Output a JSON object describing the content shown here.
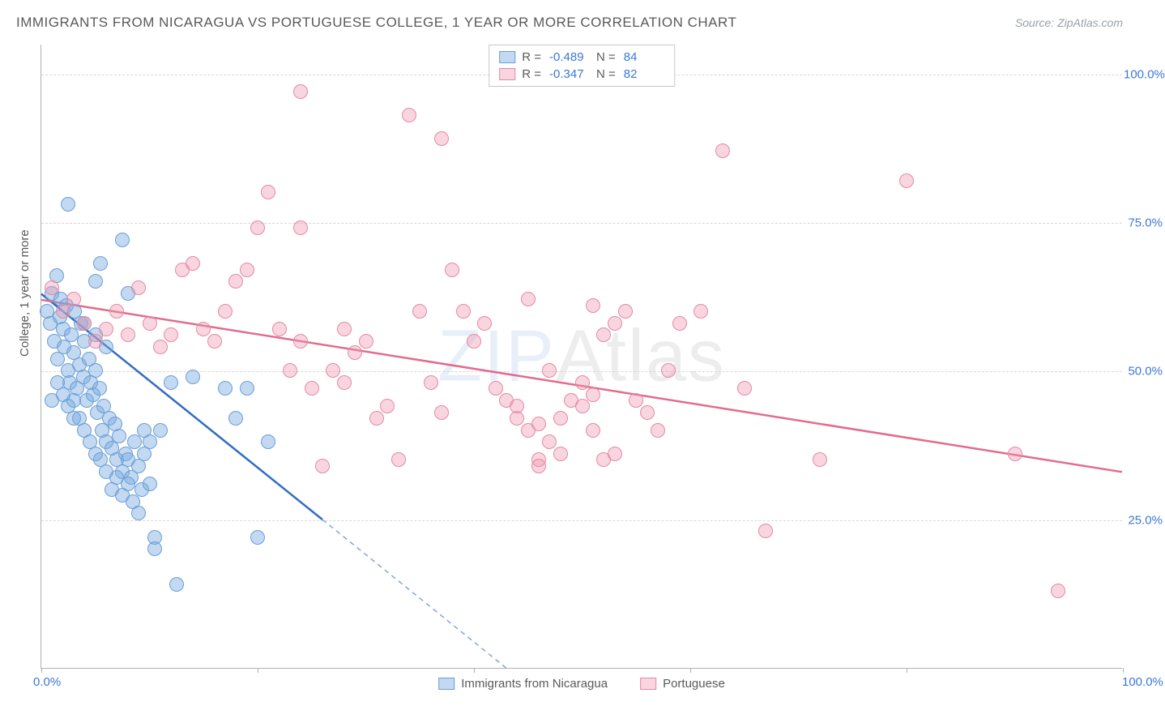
{
  "header": {
    "title": "IMMIGRANTS FROM NICARAGUA VS PORTUGUESE COLLEGE, 1 YEAR OR MORE CORRELATION CHART",
    "source": "Source: ZipAtlas.com"
  },
  "chart": {
    "type": "scatter",
    "watermark": {
      "text_bold": "ZIP",
      "text_thin": "Atlas"
    },
    "ylabel": "College, 1 year or more",
    "xlim": [
      0,
      100
    ],
    "ylim": [
      0,
      105
    ],
    "yticks": [
      25,
      50,
      75,
      100
    ],
    "ytick_labels": [
      "25.0%",
      "50.0%",
      "75.0%",
      "100.0%"
    ],
    "xticks": [
      0,
      20,
      40,
      60,
      80,
      100
    ],
    "xtick_label_left": "0.0%",
    "xtick_label_right": "100.0%",
    "background_color": "#ffffff",
    "grid_color": "#d8d8d8",
    "axis_color": "#b0b0b0",
    "tick_label_color": "#3b78d8",
    "series": [
      {
        "name": "Immigrants from Nicaragua",
        "fill": "rgba(120, 170, 225, 0.45)",
        "stroke": "#6b9ed6",
        "line_color": "#2f6bc2",
        "marker_radius": 9,
        "R": "-0.489",
        "N": "84",
        "trend": {
          "x1": 0,
          "y1": 63,
          "x2": 26,
          "y2": 25,
          "ext_x2": 43,
          "ext_y2": 0
        },
        "points": [
          [
            0.5,
            60
          ],
          [
            0.8,
            58
          ],
          [
            1.0,
            63
          ],
          [
            1.2,
            55
          ],
          [
            1.4,
            66
          ],
          [
            1.5,
            52
          ],
          [
            1.7,
            59
          ],
          [
            1.8,
            62
          ],
          [
            2.0,
            57
          ],
          [
            2.1,
            54
          ],
          [
            2.3,
            61
          ],
          [
            2.5,
            50
          ],
          [
            2.6,
            48
          ],
          [
            2.8,
            56
          ],
          [
            3.0,
            53
          ],
          [
            3.1,
            60
          ],
          [
            3.3,
            47
          ],
          [
            3.5,
            51
          ],
          [
            3.7,
            58
          ],
          [
            3.9,
            49
          ],
          [
            4.0,
            55
          ],
          [
            4.2,
            45
          ],
          [
            4.4,
            52
          ],
          [
            4.6,
            48
          ],
          [
            4.8,
            46
          ],
          [
            5.0,
            50
          ],
          [
            5.2,
            43
          ],
          [
            5.4,
            47
          ],
          [
            5.6,
            40
          ],
          [
            5.8,
            44
          ],
          [
            6.0,
            38
          ],
          [
            6.3,
            42
          ],
          [
            6.5,
            37
          ],
          [
            6.8,
            41
          ],
          [
            7.0,
            35
          ],
          [
            7.2,
            39
          ],
          [
            7.5,
            33
          ],
          [
            7.8,
            36
          ],
          [
            8.0,
            35
          ],
          [
            8.3,
            32
          ],
          [
            8.6,
            38
          ],
          [
            9.0,
            34
          ],
          [
            9.3,
            30
          ],
          [
            9.5,
            36
          ],
          [
            10.0,
            31
          ],
          [
            2.5,
            78
          ],
          [
            5.0,
            65
          ],
          [
            7.5,
            72
          ],
          [
            5.5,
            68
          ],
          [
            8.0,
            63
          ],
          [
            3.0,
            45
          ],
          [
            3.5,
            42
          ],
          [
            4.0,
            40
          ],
          [
            4.5,
            38
          ],
          [
            5.0,
            36
          ],
          [
            5.5,
            35
          ],
          [
            6.0,
            33
          ],
          [
            6.5,
            30
          ],
          [
            7.0,
            32
          ],
          [
            7.5,
            29
          ],
          [
            8.0,
            31
          ],
          [
            8.5,
            28
          ],
          [
            9.0,
            26
          ],
          [
            10.5,
            22
          ],
          [
            11.0,
            40
          ],
          [
            12.0,
            48
          ],
          [
            14.0,
            49
          ],
          [
            17.0,
            47
          ],
          [
            18.0,
            42
          ],
          [
            19.0,
            47
          ],
          [
            4.0,
            58
          ],
          [
            5.0,
            56
          ],
          [
            6.0,
            54
          ],
          [
            1.0,
            45
          ],
          [
            1.5,
            48
          ],
          [
            2.0,
            46
          ],
          [
            2.5,
            44
          ],
          [
            3.0,
            42
          ],
          [
            9.5,
            40
          ],
          [
            10.0,
            38
          ],
          [
            10.5,
            20
          ],
          [
            12.5,
            14
          ],
          [
            20.0,
            22
          ],
          [
            21.0,
            38
          ]
        ]
      },
      {
        "name": "Portuguese",
        "fill": "rgba(240, 150, 175, 0.40)",
        "stroke": "#e38aa3",
        "line_color": "#e16c8e",
        "marker_radius": 9,
        "R": "-0.347",
        "N": "82",
        "trend": {
          "x1": 0,
          "y1": 62,
          "x2": 100,
          "y2": 33
        },
        "points": [
          [
            1.0,
            64
          ],
          [
            2.0,
            60
          ],
          [
            3.0,
            62
          ],
          [
            4.0,
            58
          ],
          [
            5.0,
            55
          ],
          [
            6.0,
            57
          ],
          [
            7.0,
            60
          ],
          [
            8.0,
            56
          ],
          [
            9.0,
            64
          ],
          [
            10.0,
            58
          ],
          [
            11.0,
            54
          ],
          [
            12.0,
            56
          ],
          [
            13.0,
            67
          ],
          [
            14.0,
            68
          ],
          [
            15.0,
            57
          ],
          [
            16.0,
            55
          ],
          [
            17.0,
            60
          ],
          [
            18.0,
            65
          ],
          [
            19.0,
            67
          ],
          [
            20.0,
            74
          ],
          [
            21.0,
            80
          ],
          [
            22.0,
            57
          ],
          [
            23.0,
            50
          ],
          [
            24.0,
            55
          ],
          [
            25.0,
            47
          ],
          [
            26.0,
            34
          ],
          [
            27.0,
            50
          ],
          [
            28.0,
            48
          ],
          [
            29.0,
            53
          ],
          [
            30.0,
            55
          ],
          [
            31.0,
            42
          ],
          [
            32.0,
            44
          ],
          [
            33.0,
            35
          ],
          [
            34.0,
            93
          ],
          [
            35.0,
            60
          ],
          [
            36.0,
            48
          ],
          [
            37.0,
            43
          ],
          [
            38.0,
            67
          ],
          [
            39.0,
            60
          ],
          [
            40.0,
            55
          ],
          [
            41.0,
            58
          ],
          [
            42.0,
            47
          ],
          [
            43.0,
            45
          ],
          [
            44.0,
            42
          ],
          [
            45.0,
            40
          ],
          [
            46.0,
            35
          ],
          [
            47.0,
            50
          ],
          [
            48.0,
            42
          ],
          [
            49.0,
            45
          ],
          [
            50.0,
            48
          ],
          [
            51.0,
            40
          ],
          [
            52.0,
            56
          ],
          [
            53.0,
            58
          ],
          [
            54.0,
            60
          ],
          [
            55.0,
            45
          ],
          [
            56.0,
            43
          ],
          [
            57.0,
            40
          ],
          [
            58.0,
            50
          ],
          [
            59.0,
            58
          ],
          [
            61.0,
            60
          ],
          [
            63.0,
            87
          ],
          [
            65.0,
            47
          ],
          [
            67.0,
            23
          ],
          [
            24.0,
            97
          ],
          [
            44.0,
            44
          ],
          [
            45.0,
            62
          ],
          [
            46.0,
            34
          ],
          [
            46.0,
            41
          ],
          [
            47.0,
            38
          ],
          [
            48.0,
            36
          ],
          [
            50.0,
            44
          ],
          [
            51.0,
            46
          ],
          [
            52.0,
            35
          ],
          [
            53.0,
            36
          ],
          [
            51.0,
            61
          ],
          [
            72.0,
            35
          ],
          [
            80.0,
            82
          ],
          [
            90.0,
            36
          ],
          [
            94.0,
            13
          ],
          [
            24.0,
            74
          ],
          [
            37.0,
            89
          ],
          [
            28.0,
            57
          ]
        ]
      }
    ]
  },
  "colors": {
    "text": "#5a5a5a"
  }
}
